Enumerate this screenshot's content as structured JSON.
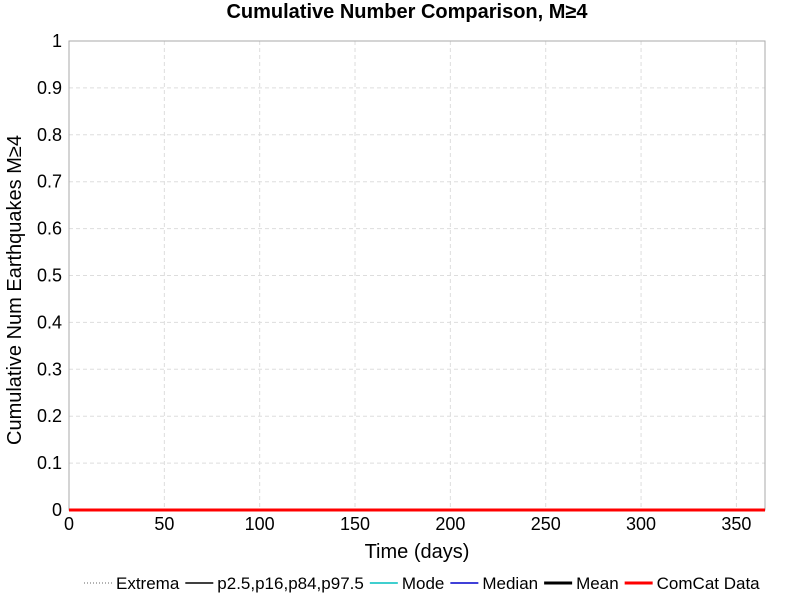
{
  "chart_data": {
    "type": "line",
    "title": "Cumulative Number Comparison, M≥4",
    "xlabel": "Time (days)",
    "ylabel": "Cumulative Num Earthquakes M≥4",
    "xlim": [
      0,
      365
    ],
    "ylim": [
      0,
      1
    ],
    "xticks": [
      0,
      50,
      100,
      150,
      200,
      250,
      300,
      350
    ],
    "yticks": [
      0,
      0.1,
      0.2,
      0.3,
      0.4,
      0.5,
      0.6,
      0.7,
      0.8,
      0.9,
      1
    ],
    "grid": true,
    "legend_position": "bottom",
    "series": [
      {
        "name": "Extrema",
        "color": "#666666",
        "style": "dotted",
        "values": []
      },
      {
        "name": "p2.5,p16,p84,p97.5",
        "color": "#000000",
        "style": "solid",
        "values": []
      },
      {
        "name": "Mode",
        "color": "#00bfbf",
        "style": "solid",
        "values": []
      },
      {
        "name": "Median",
        "color": "#0000cc",
        "style": "solid",
        "values": []
      },
      {
        "name": "Mean",
        "color": "#000000",
        "style": "solid-thick",
        "values": []
      },
      {
        "name": "ComCat Data",
        "color": "#ff0000",
        "style": "solid-thick",
        "x": [
          0,
          365
        ],
        "values": [
          0,
          0
        ]
      }
    ]
  }
}
